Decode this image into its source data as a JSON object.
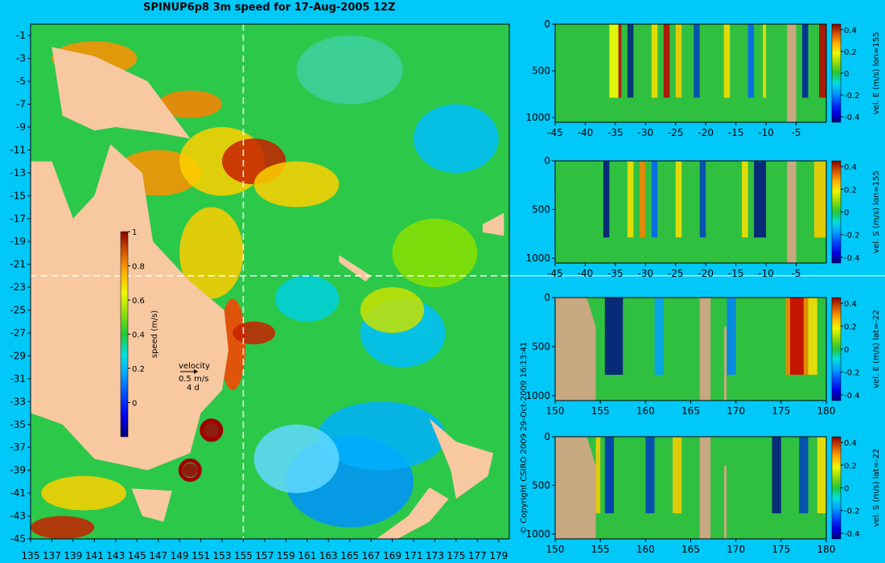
{
  "header": {
    "title": "SPINUP6p8 3m speed for 17-Aug-2005 12Z",
    "copyright": "© Copyright CSIRO 2009   29-Oct-2009 16:13:41"
  },
  "map": {
    "velocity_key": {
      "label": "velocity",
      "speed": "0.5 m/s",
      "duration": "4 d"
    },
    "colors": {
      "land": "#f8c8a0",
      "background": "#00c8f8",
      "crosshair": "#ffffff"
    }
  },
  "chart_data": [
    {
      "type": "heatmap",
      "title": "SPINUP6p8 3m speed for 17-Aug-2005 12Z",
      "x_ticks": [
        "135",
        "137",
        "139",
        "141",
        "143",
        "145",
        "147",
        "149",
        "151",
        "153",
        "155",
        "157",
        "159",
        "161",
        "163",
        "165",
        "167",
        "169",
        "171",
        "173",
        "175",
        "177",
        "179"
      ],
      "y_ticks": [
        "-1",
        "-3",
        "-5",
        "-7",
        "-9",
        "-11",
        "-13",
        "-15",
        "-17",
        "-19",
        "-21",
        "-23",
        "-25",
        "-27",
        "-29",
        "-31",
        "-33",
        "-35",
        "-37",
        "-39",
        "-41",
        "-43",
        "-45"
      ],
      "xlim": [
        135,
        180
      ],
      "ylim": [
        -45,
        0
      ],
      "colorbar": {
        "label": "speed (m/s)",
        "ticks": [
          "0",
          "0.2",
          "0.4",
          "0.6",
          "0.8",
          "1"
        ],
        "range": [
          -0.2,
          1
        ]
      },
      "section_lines": {
        "lon": 155,
        "lat": -22
      }
    },
    {
      "type": "heatmap",
      "x_ticks": [
        "-45",
        "-40",
        "-35",
        "-30",
        "-25",
        "-20",
        "-15",
        "-10",
        "-5"
      ],
      "y_ticks": [
        "0",
        "500",
        "1000"
      ],
      "xlim": [
        -45,
        0
      ],
      "ylim": [
        1050,
        0
      ],
      "colorbar": {
        "label": "vel. E (m/s) lon=155",
        "ticks": [
          "0.4",
          "0.2",
          "0",
          "-0.2",
          "-0.4"
        ],
        "range": [
          -0.45,
          0.45
        ]
      }
    },
    {
      "type": "heatmap",
      "x_ticks": [
        "-45",
        "-40",
        "-35",
        "-30",
        "-25",
        "-20",
        "-15",
        "-10",
        "-5"
      ],
      "y_ticks": [
        "0",
        "500",
        "1000"
      ],
      "xlim": [
        -45,
        0
      ],
      "ylim": [
        1050,
        0
      ],
      "colorbar": {
        "label": "vel. S (m/s) lon=155",
        "ticks": [
          "0.4",
          "0.2",
          "0",
          "-0.2",
          "-0.4"
        ],
        "range": [
          -0.45,
          0.45
        ]
      }
    },
    {
      "type": "heatmap",
      "x_ticks": [
        "150",
        "155",
        "160",
        "165",
        "170",
        "175",
        "180"
      ],
      "y_ticks": [
        "0",
        "500",
        "1000"
      ],
      "xlim": [
        150,
        180
      ],
      "ylim": [
        1050,
        0
      ],
      "colorbar": {
        "label": "vel. E (m/s) lat=-22",
        "ticks": [
          "0.4",
          "0.2",
          "0",
          "-0.2",
          "-0.4"
        ],
        "range": [
          -0.45,
          0.45
        ]
      }
    },
    {
      "type": "heatmap",
      "x_ticks": [
        "150",
        "155",
        "160",
        "165",
        "170",
        "175",
        "180"
      ],
      "y_ticks": [
        "0",
        "500",
        "1000"
      ],
      "xlim": [
        150,
        180
      ],
      "ylim": [
        1050,
        0
      ],
      "colorbar": {
        "label": "vel. S (m/s) lat=-22",
        "ticks": [
          "0.4",
          "0.2",
          "0",
          "-0.2",
          "-0.4"
        ],
        "range": [
          -0.45,
          0.45
        ]
      }
    }
  ]
}
